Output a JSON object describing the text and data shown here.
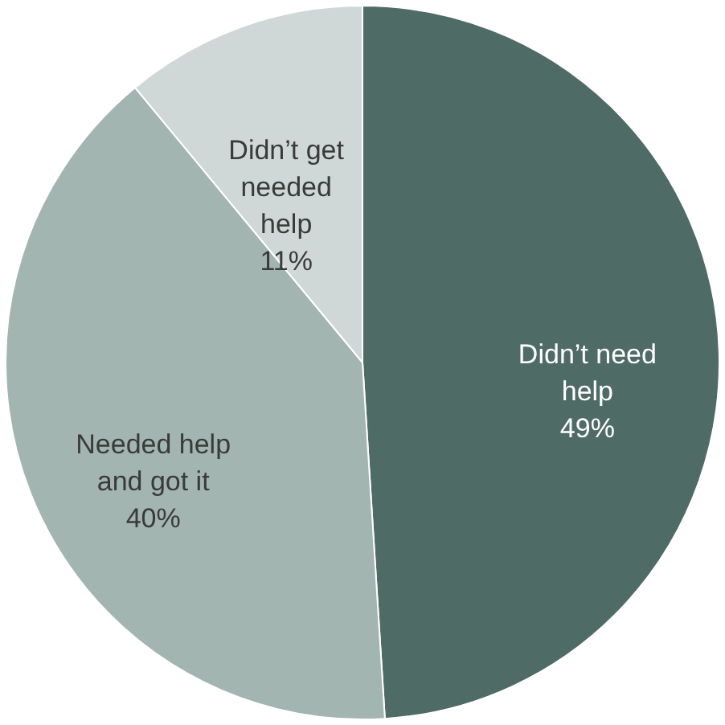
{
  "chart_data": {
    "type": "pie",
    "categories": [
      "Didn’t need help",
      "Needed help and got it",
      "Didn’t get needed help"
    ],
    "values": [
      49,
      40,
      11
    ],
    "value_labels": [
      "49%",
      "40%",
      "11%"
    ],
    "colors": [
      "#4f6b66",
      "#a3b5b0",
      "#cfd8d6"
    ]
  }
}
